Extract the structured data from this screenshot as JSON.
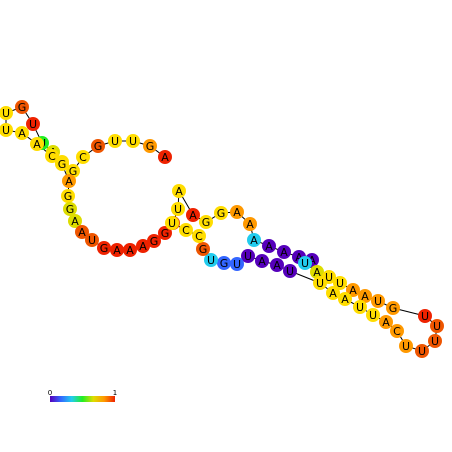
{
  "colors": {
    "c0": "#5500bb",
    "c1": "#3366ff",
    "c2": "#22ccee",
    "c3": "#22ee22",
    "c4": "#dddd00",
    "c5": "#ffdd00",
    "c6": "#ff9900",
    "c7": "#ee5500",
    "c8": "#ee2200",
    "backbone": "#000000"
  },
  "sequence": [
    {
      "base": "A",
      "color": "c8"
    },
    {
      "base": "G",
      "color": "c6"
    },
    {
      "base": "U",
      "color": "c5"
    },
    {
      "base": "U",
      "color": "c5"
    },
    {
      "base": "G",
      "color": "c7"
    },
    {
      "base": "C",
      "color": "c5"
    },
    {
      "base": "G",
      "color": "c5"
    },
    {
      "base": "U",
      "color": "c5"
    },
    {
      "base": "A",
      "color": "c4"
    },
    {
      "base": "U",
      "color": "c3"
    },
    {
      "base": "U",
      "color": "c8"
    },
    {
      "base": "G",
      "color": "c7"
    },
    {
      "base": "U",
      "color": "c5"
    },
    {
      "base": "U",
      "color": "c5"
    },
    {
      "base": "A",
      "color": "c5"
    },
    {
      "base": "A",
      "color": "c5"
    },
    {
      "base": "C",
      "color": "c5"
    },
    {
      "base": "G",
      "color": "c5"
    },
    {
      "base": "A",
      "color": "c6"
    },
    {
      "base": "G",
      "color": "c5"
    },
    {
      "base": "G",
      "color": "c4"
    },
    {
      "base": "A",
      "color": "c4"
    },
    {
      "base": "A",
      "color": "c7"
    },
    {
      "base": "U",
      "color": "c7"
    },
    {
      "base": "G",
      "color": "c8"
    },
    {
      "base": "A",
      "color": "c8"
    },
    {
      "base": "A",
      "color": "c8"
    },
    {
      "base": "A",
      "color": "c8"
    },
    {
      "base": "G",
      "color": "c8"
    },
    {
      "base": "G",
      "color": "c8"
    },
    {
      "base": "G",
      "color": "c7"
    },
    {
      "base": "U",
      "color": "c5"
    },
    {
      "base": "A",
      "color": "c5"
    },
    {
      "base": "A",
      "color": "c8"
    },
    {
      "base": "G",
      "color": "c5"
    },
    {
      "base": "G",
      "color": "c5"
    },
    {
      "base": "A",
      "color": "c6"
    },
    {
      "base": "A",
      "color": "c6"
    },
    {
      "base": "A",
      "color": "c2"
    },
    {
      "base": "A",
      "color": "c0"
    },
    {
      "base": "A",
      "color": "c0"
    },
    {
      "base": "A",
      "color": "c0"
    },
    {
      "base": "A",
      "color": "c0"
    },
    {
      "base": "U",
      "color": "c2"
    },
    {
      "base": "A",
      "color": "c4"
    },
    {
      "base": "U",
      "color": "c5"
    },
    {
      "base": "U",
      "color": "c5"
    },
    {
      "base": "A",
      "color": "c6"
    },
    {
      "base": "A",
      "color": "c6"
    },
    {
      "base": "U",
      "color": "c6"
    },
    {
      "base": "G",
      "color": "c6"
    },
    {
      "base": "U",
      "color": "c8"
    },
    {
      "base": "U",
      "color": "c7"
    },
    {
      "base": "U",
      "color": "c7"
    },
    {
      "base": "U",
      "color": "c7"
    },
    {
      "base": "U",
      "color": "c6"
    },
    {
      "base": "C",
      "color": "c6"
    },
    {
      "base": "A",
      "color": "c6"
    },
    {
      "base": "U",
      "color": "c5"
    },
    {
      "base": "U",
      "color": "c5"
    },
    {
      "base": "A",
      "color": "c5"
    },
    {
      "base": "A",
      "color": "c5"
    },
    {
      "base": "U",
      "color": "c5"
    },
    {
      "base": "U",
      "color": "c0"
    },
    {
      "base": "A",
      "color": "c0"
    },
    {
      "base": "A",
      "color": "c0"
    },
    {
      "base": "U",
      "color": "c0"
    },
    {
      "base": "U",
      "color": "c1"
    },
    {
      "base": "G",
      "color": "c1"
    },
    {
      "base": "U",
      "color": "c2"
    },
    {
      "base": "G",
      "color": "c7"
    },
    {
      "base": "C",
      "color": "c5"
    },
    {
      "base": "C",
      "color": "c5"
    },
    {
      "base": "U",
      "color": "c5"
    }
  ],
  "color_scale": {
    "min_label": "0",
    "max_label": "1",
    "gradient": [
      "#5500bb",
      "#3366ff",
      "#22ccee",
      "#22ee22",
      "#dddd00",
      "#ff9900",
      "#ee2200"
    ]
  }
}
